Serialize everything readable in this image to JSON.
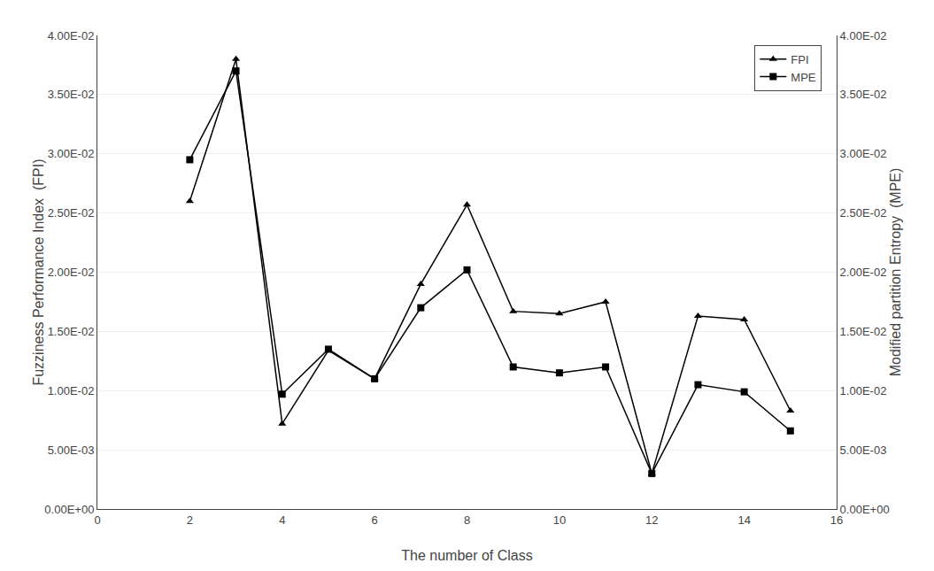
{
  "chart_data": {
    "type": "line",
    "xlabel": "The number of Class",
    "ylabel": "Fuzziness Performance Index  (FPI)",
    "y2label": "Modified partition Entropy  (MPE)",
    "x": [
      2,
      3,
      4,
      5,
      6,
      7,
      8,
      9,
      10,
      11,
      12,
      13,
      14,
      15
    ],
    "series": [
      {
        "name": "FPI",
        "color": "#000000",
        "marker": "triangle",
        "values": [
          0.026,
          0.038,
          0.0072,
          0.0134,
          0.011,
          0.019,
          0.0257,
          0.0167,
          0.0165,
          0.0175,
          0.003,
          0.0163,
          0.016,
          0.0083
        ]
      },
      {
        "name": "MPE",
        "color": "#000000",
        "marker": "square",
        "axis": "y2",
        "values": [
          0.0295,
          0.037,
          0.0097,
          0.0135,
          0.011,
          0.017,
          0.0202,
          0.012,
          0.0115,
          0.012,
          0.003,
          0.0105,
          0.0099,
          0.0066
        ]
      }
    ],
    "xlim": [
      0,
      16
    ],
    "xticks": [
      0,
      2,
      4,
      6,
      8,
      10,
      12,
      14,
      16
    ],
    "ylim": [
      0.0,
      0.04
    ],
    "yticks": [
      {
        "value": 0.0,
        "label": "0.00E+00"
      },
      {
        "value": 0.005,
        "label": "5.00E-03"
      },
      {
        "value": 0.01,
        "label": "1.00E-02"
      },
      {
        "value": 0.015,
        "label": "1.50E-02"
      },
      {
        "value": 0.02,
        "label": "2.00E-02"
      },
      {
        "value": 0.025,
        "label": "2.50E-02"
      },
      {
        "value": 0.03,
        "label": "3.00E-02"
      },
      {
        "value": 0.035,
        "label": "3.50E-02"
      },
      {
        "value": 0.04,
        "label": "4.00E-02"
      }
    ],
    "y2lim": [
      0.0,
      0.04
    ],
    "y2ticks": [
      {
        "value": 0.0,
        "label": "0.00E+00"
      },
      {
        "value": 0.005,
        "label": "5.00E-03"
      },
      {
        "value": 0.01,
        "label": "1.00E-02"
      },
      {
        "value": 0.015,
        "label": "1.50E-02"
      },
      {
        "value": 0.02,
        "label": "2.00E-02"
      },
      {
        "value": 0.025,
        "label": "2.50E-02"
      },
      {
        "value": 0.03,
        "label": "3.00E-02"
      },
      {
        "value": 0.035,
        "label": "3.50E-02"
      },
      {
        "value": 0.04,
        "label": "4.00E-02"
      }
    ],
    "grid": true,
    "legend": "upper right"
  }
}
